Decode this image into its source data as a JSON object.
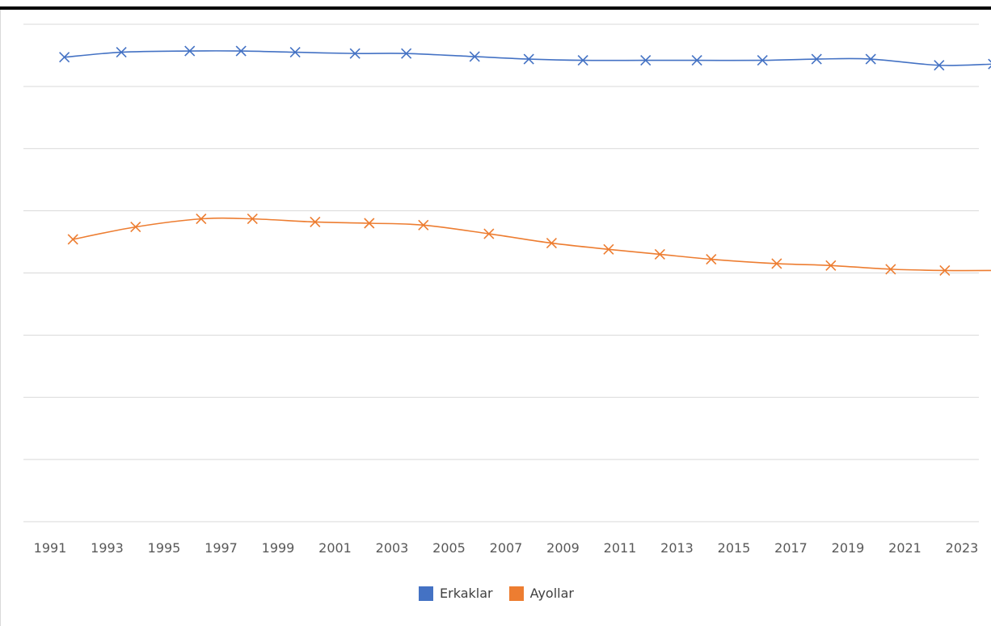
{
  "chart_data": {
    "type": "line",
    "title": "",
    "xlabel": "",
    "ylabel": "",
    "x": [
      1991,
      1992,
      1993,
      1994,
      1995,
      1996,
      1997,
      1998,
      1999,
      2000,
      2001,
      2002,
      2003,
      2004,
      2005,
      2006,
      2007,
      2008,
      2009,
      2010,
      2011,
      2012,
      2013,
      2014,
      2015,
      2016,
      2017,
      2018,
      2019,
      2020,
      2021,
      2022,
      2023
    ],
    "x_tick_labels": [
      "1991",
      "1993",
      "1995",
      "1997",
      "1999",
      "2001",
      "2003",
      "2005",
      "2007",
      "2009",
      "2011",
      "2013",
      "2015",
      "2017",
      "2019",
      "2021",
      "2023"
    ],
    "ylim": [
      0,
      8
    ],
    "grid": true,
    "legend_position": "bottom",
    "series": [
      {
        "name": "Erkaklar",
        "color": "#4472c4",
        "marker": "x",
        "points": [
          {
            "x": 1991.5,
            "y": 7.47
          },
          {
            "x": 1993.5,
            "y": 7.55
          },
          {
            "x": 1995.9,
            "y": 7.57
          },
          {
            "x": 1997.7,
            "y": 7.57
          },
          {
            "x": 1999.6,
            "y": 7.55
          },
          {
            "x": 2001.7,
            "y": 7.53
          },
          {
            "x": 2003.5,
            "y": 7.53
          },
          {
            "x": 2005.9,
            "y": 7.48
          },
          {
            "x": 2007.8,
            "y": 7.44
          },
          {
            "x": 2009.7,
            "y": 7.42
          },
          {
            "x": 2011.9,
            "y": 7.42
          },
          {
            "x": 2013.7,
            "y": 7.42
          },
          {
            "x": 2016.0,
            "y": 7.42
          },
          {
            "x": 2017.9,
            "y": 7.44
          },
          {
            "x": 2019.8,
            "y": 7.44
          },
          {
            "x": 2022.2,
            "y": 7.34
          },
          {
            "x": 2024.1,
            "y": 7.36
          }
        ]
      },
      {
        "name": "Ayollar",
        "color": "#ed7d31",
        "marker": "x",
        "points": [
          {
            "x": 1991.8,
            "y": 4.54
          },
          {
            "x": 1994.0,
            "y": 4.74
          },
          {
            "x": 1996.3,
            "y": 4.87
          },
          {
            "x": 1998.1,
            "y": 4.87
          },
          {
            "x": 2000.3,
            "y": 4.82
          },
          {
            "x": 2002.2,
            "y": 4.8
          },
          {
            "x": 2004.1,
            "y": 4.77
          },
          {
            "x": 2006.4,
            "y": 4.63
          },
          {
            "x": 2008.6,
            "y": 4.48
          },
          {
            "x": 2010.6,
            "y": 4.38
          },
          {
            "x": 2012.4,
            "y": 4.3
          },
          {
            "x": 2014.2,
            "y": 4.22
          },
          {
            "x": 2016.5,
            "y": 4.15
          },
          {
            "x": 2018.4,
            "y": 4.12
          },
          {
            "x": 2020.5,
            "y": 4.06
          },
          {
            "x": 2022.4,
            "y": 4.04
          },
          {
            "x": 2024.3,
            "y": 4.04
          }
        ]
      }
    ]
  }
}
